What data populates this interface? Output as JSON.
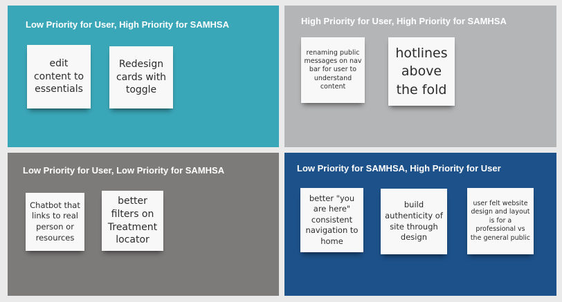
{
  "board": {
    "quadrants": [
      {
        "title": "Low Priority for User, High Priority for SAMHSA",
        "color": "#3aa7b8",
        "notes": [
          "edit content to essentials",
          "Redesign cards with toggle"
        ]
      },
      {
        "title": "High Priority for User, High Priority for SAMHSA",
        "color": "#b4b5b6",
        "notes": [
          "renaming public messages on nav bar for user to understand content",
          "hotlines above the fold"
        ]
      },
      {
        "title": "Low Priority for User, Low Priority for SAMHSA",
        "color": "#7d7b7a",
        "notes": [
          "Chatbot that links to real person or resources",
          "better filters on Treatment locator"
        ]
      },
      {
        "title": "Low Priority for SAMHSA, High Priority for User",
        "color": "#1d5189",
        "notes": [
          "better \"you are here\" consistent navigation to home",
          "build authenticity of site through design",
          "user felt website design and layout is for a professional vs the general public"
        ]
      }
    ]
  }
}
